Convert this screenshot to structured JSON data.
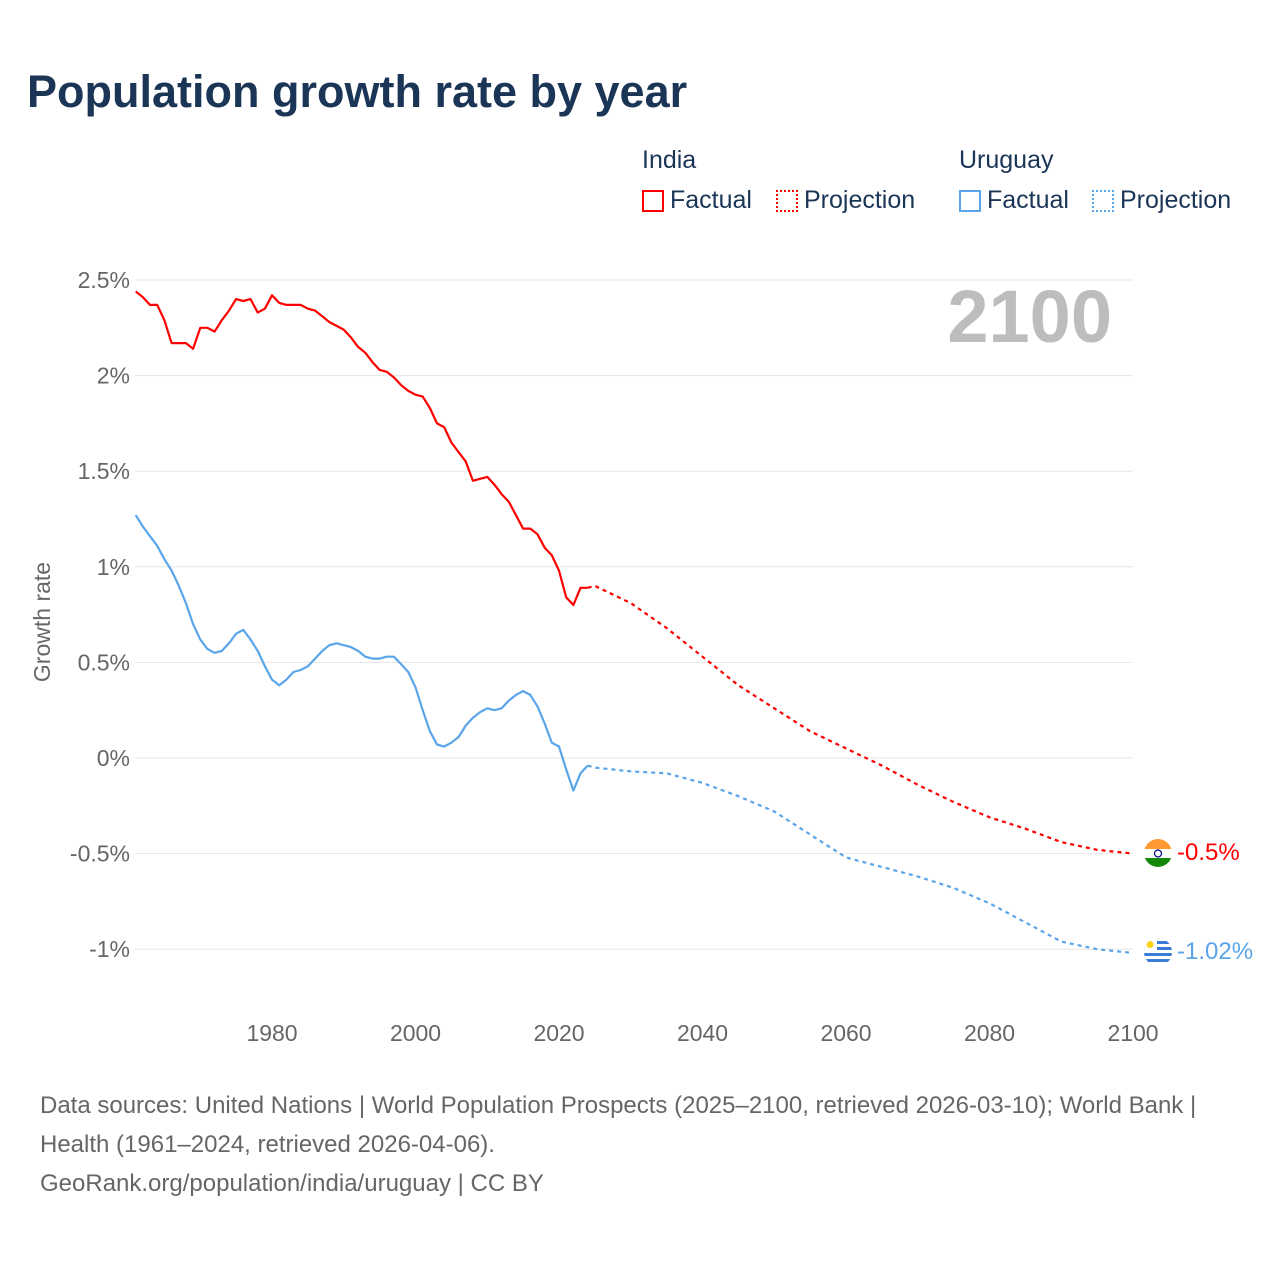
{
  "title": "Population growth rate by year",
  "legend": {
    "groups": [
      {
        "name": "India",
        "factual": "Factual",
        "projection": "Projection",
        "color": "#ff0000"
      },
      {
        "name": "Uruguay",
        "factual": "Factual",
        "projection": "Projection",
        "color": "#5aa5ea"
      }
    ]
  },
  "year_label": "2100",
  "end_labels": {
    "india": "-0.5%",
    "uruguay": "-1.02%"
  },
  "footer": {
    "sources": "Data sources: United Nations | World Population Prospects (2025–2100, retrieved 2026-03-10); World Bank | Health (1961–2024, retrieved 2026-04-06).",
    "link": "GeoRank.org/population/india/uruguay | CC BY"
  },
  "chart_data": {
    "type": "line",
    "title": "Population growth rate by year",
    "xlabel": "",
    "ylabel": "Growth rate",
    "xlim": [
      1961,
      2100
    ],
    "ylim": [
      -1.25,
      2.6
    ],
    "xticks": [
      1980,
      2000,
      2020,
      2040,
      2060,
      2080,
      2100
    ],
    "xtick_labels": [
      "1980",
      "2000",
      "2020",
      "2040",
      "2060",
      "2080",
      "2100"
    ],
    "yticks": [
      2.5,
      2,
      1.5,
      1,
      0.5,
      0,
      -0.5,
      -1
    ],
    "ytick_labels": [
      "2.5%",
      "2%",
      "1.5%",
      "1%",
      "0.5%",
      "0%",
      "-0.5%",
      "-1%"
    ],
    "grid": true,
    "legend_position": "top-right",
    "series": [
      {
        "name": "India Factual",
        "color": "#ff0000",
        "style": "solid",
        "x_start": 1961,
        "values": [
          2.44,
          2.41,
          2.37,
          2.37,
          2.29,
          2.17,
          2.17,
          2.17,
          2.14,
          2.25,
          2.25,
          2.23,
          2.29,
          2.34,
          2.4,
          2.39,
          2.4,
          2.33,
          2.35,
          2.42,
          2.38,
          2.37,
          2.37,
          2.37,
          2.35,
          2.34,
          2.31,
          2.28,
          2.26,
          2.24,
          2.2,
          2.15,
          2.12,
          2.07,
          2.03,
          2.02,
          1.99,
          1.95,
          1.92,
          1.9,
          1.89,
          1.83,
          1.75,
          1.73,
          1.65,
          1.6,
          1.55,
          1.45,
          1.46,
          1.47,
          1.43,
          1.38,
          1.34,
          1.27,
          1.2,
          1.2,
          1.17,
          1.1,
          1.06,
          0.98,
          0.84,
          0.8,
          0.89,
          0.89
        ]
      },
      {
        "name": "India Projection",
        "color": "#ff0000",
        "style": "dotted",
        "x": [
          2024,
          2025,
          2030,
          2035,
          2040,
          2045,
          2050,
          2055,
          2060,
          2065,
          2070,
          2075,
          2080,
          2085,
          2090,
          2095,
          2100
        ],
        "values": [
          0.89,
          0.9,
          0.81,
          0.68,
          0.53,
          0.38,
          0.26,
          0.14,
          0.05,
          -0.04,
          -0.14,
          -0.23,
          -0.31,
          -0.37,
          -0.44,
          -0.48,
          -0.5
        ]
      },
      {
        "name": "Uruguay Factual",
        "color": "#5aa5ea",
        "style": "solid",
        "x_start": 1961,
        "values": [
          1.27,
          1.21,
          1.16,
          1.11,
          1.04,
          0.98,
          0.9,
          0.81,
          0.7,
          0.62,
          0.57,
          0.55,
          0.56,
          0.6,
          0.65,
          0.67,
          0.62,
          0.56,
          0.48,
          0.41,
          0.38,
          0.41,
          0.45,
          0.46,
          0.48,
          0.52,
          0.56,
          0.59,
          0.6,
          0.59,
          0.58,
          0.56,
          0.53,
          0.52,
          0.52,
          0.53,
          0.53,
          0.49,
          0.45,
          0.37,
          0.25,
          0.14,
          0.07,
          0.06,
          0.08,
          0.11,
          0.17,
          0.21,
          0.24,
          0.26,
          0.25,
          0.26,
          0.3,
          0.33,
          0.35,
          0.33,
          0.27,
          0.18,
          0.08,
          0.06,
          -0.06,
          -0.17,
          -0.08,
          -0.04
        ]
      },
      {
        "name": "Uruguay Projection",
        "color": "#5aa5ea",
        "style": "dotted",
        "x": [
          2024,
          2025,
          2030,
          2035,
          2040,
          2045,
          2050,
          2055,
          2060,
          2065,
          2070,
          2075,
          2080,
          2085,
          2090,
          2095,
          2100
        ],
        "values": [
          -0.04,
          -0.05,
          -0.07,
          -0.08,
          -0.13,
          -0.2,
          -0.28,
          -0.4,
          -0.52,
          -0.57,
          -0.62,
          -0.68,
          -0.76,
          -0.86,
          -0.96,
          -1.0,
          -1.02
        ]
      }
    ]
  }
}
